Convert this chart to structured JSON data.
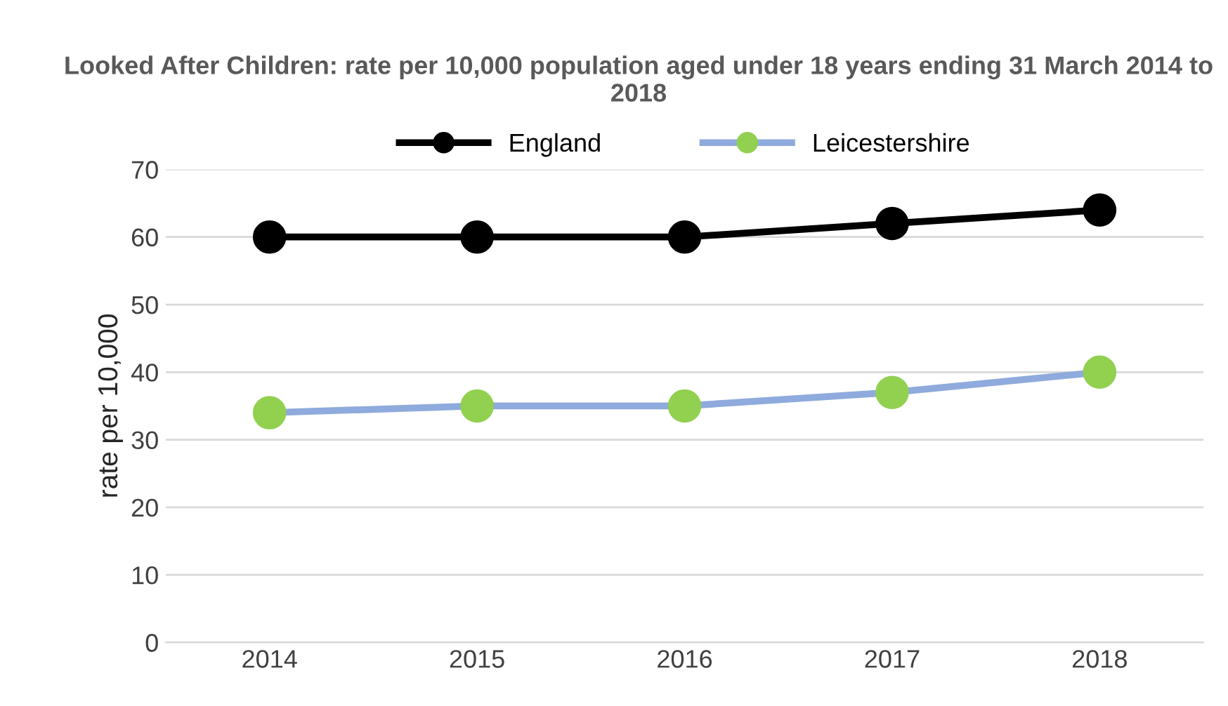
{
  "chart_data": {
    "type": "line",
    "title": "Looked After Children: rate per 10,000 population aged under 18 years ending 31 March 2014 to 2018",
    "ylabel": "rate per 10,000",
    "categories": [
      "2014",
      "2015",
      "2016",
      "2017",
      "2018"
    ],
    "series": [
      {
        "name": "England",
        "color": "#000000",
        "colors": [
          "#000000",
          "#000000",
          "#000000",
          "#000000",
          "#000000"
        ],
        "values": [
          60,
          60,
          60,
          62,
          64
        ]
      },
      {
        "name": "Leicestershire",
        "color": "#8faadc",
        "colors": [
          "#92d050",
          "#92d050",
          "#92d050",
          "#92d050",
          "#92d050"
        ],
        "values": [
          34,
          35,
          35,
          37,
          40
        ]
      }
    ],
    "ylim": [
      0,
      70
    ],
    "yticks": [
      0,
      10,
      20,
      30,
      40,
      50,
      60,
      70
    ],
    "grid": "y",
    "legend": "top",
    "marker": "circle",
    "line_style": "solid"
  }
}
